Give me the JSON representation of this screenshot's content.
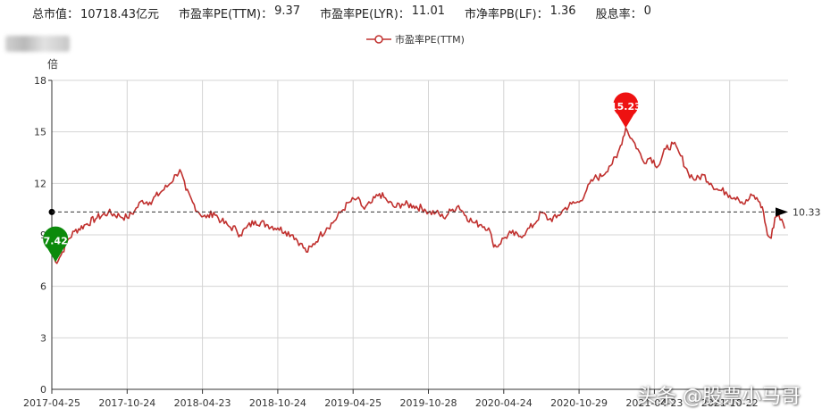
{
  "header": {
    "stats": [
      {
        "label": "总市值：",
        "value": "10718.43亿元"
      },
      {
        "label": "市盈率PE(TTM)：",
        "value": "9.37"
      },
      {
        "label": "市盈率PE(LYR)：",
        "value": "11.01"
      },
      {
        "label": "市净率PB(LF)：",
        "value": "1.36"
      },
      {
        "label": "股息率：",
        "value": "0"
      }
    ]
  },
  "watermark": "头条 @股票小马哥",
  "colors": {
    "line": "#c0302e",
    "max_pin": "#ee1111",
    "min_pin": "#0b8a0b",
    "axis": "#333333",
    "grid": "#d4d4d4"
  },
  "chart_data": {
    "type": "line",
    "title": "",
    "xlabel": "",
    "ylabel": "倍",
    "ylim": [
      0,
      18
    ],
    "yticks": [
      0,
      3,
      6,
      9,
      12,
      15,
      18
    ],
    "grid": true,
    "legend_position": "top-center",
    "categories": [
      "2017-04-25",
      "2017-10-24",
      "2018-04-23",
      "2018-10-24",
      "2019-04-25",
      "2019-10-28",
      "2020-04-24",
      "2020-10-29",
      "2021-04-23",
      "2021-10-22"
    ],
    "series": [
      {
        "name": "市盈率PE(TTM)",
        "points": [
          [
            0,
            8.0
          ],
          [
            0.05,
            7.42
          ],
          [
            0.12,
            7.8
          ],
          [
            0.2,
            8.6
          ],
          [
            0.3,
            9.2
          ],
          [
            0.45,
            9.6
          ],
          [
            0.6,
            10.0
          ],
          [
            0.75,
            10.3
          ],
          [
            0.9,
            10.1
          ],
          [
            1.0,
            10.0
          ],
          [
            1.1,
            10.4
          ],
          [
            1.2,
            11.0
          ],
          [
            1.3,
            10.9
          ],
          [
            1.45,
            11.5
          ],
          [
            1.55,
            11.9
          ],
          [
            1.65,
            12.5
          ],
          [
            1.7,
            12.8
          ],
          [
            1.78,
            11.6
          ],
          [
            1.87,
            10.9
          ],
          [
            1.95,
            10.3
          ],
          [
            2.05,
            10.0
          ],
          [
            2.15,
            10.3
          ],
          [
            2.25,
            9.8
          ],
          [
            2.35,
            9.5
          ],
          [
            2.45,
            9.3
          ],
          [
            2.5,
            9.0
          ],
          [
            2.58,
            9.4
          ],
          [
            2.7,
            9.8
          ],
          [
            2.85,
            9.6
          ],
          [
            3.0,
            9.4
          ],
          [
            3.1,
            9.2
          ],
          [
            3.2,
            9.0
          ],
          [
            3.3,
            8.5
          ],
          [
            3.38,
            8.0
          ],
          [
            3.45,
            8.3
          ],
          [
            3.55,
            8.9
          ],
          [
            3.65,
            9.4
          ],
          [
            3.75,
            9.8
          ],
          [
            3.85,
            10.4
          ],
          [
            3.95,
            10.9
          ],
          [
            4.05,
            11.1
          ],
          [
            4.15,
            10.5
          ],
          [
            4.25,
            10.9
          ],
          [
            4.35,
            11.4
          ],
          [
            4.45,
            11.0
          ],
          [
            4.55,
            10.6
          ],
          [
            4.65,
            10.8
          ],
          [
            4.8,
            10.7
          ],
          [
            4.95,
            10.5
          ],
          [
            5.0,
            10.3
          ],
          [
            5.1,
            10.3
          ],
          [
            5.2,
            10.0
          ],
          [
            5.3,
            10.4
          ],
          [
            5.4,
            10.7
          ],
          [
            5.5,
            10.1
          ],
          [
            5.6,
            9.7
          ],
          [
            5.7,
            9.6
          ],
          [
            5.8,
            9.4
          ],
          [
            5.85,
            8.6
          ],
          [
            5.9,
            8.3
          ],
          [
            6.0,
            8.8
          ],
          [
            6.1,
            9.1
          ],
          [
            6.2,
            8.9
          ],
          [
            6.3,
            9.2
          ],
          [
            6.4,
            9.6
          ],
          [
            6.5,
            10.3
          ],
          [
            6.6,
            9.9
          ],
          [
            6.7,
            10.0
          ],
          [
            6.8,
            10.5
          ],
          [
            6.9,
            10.8
          ],
          [
            7.0,
            10.9
          ],
          [
            7.1,
            11.6
          ],
          [
            7.2,
            12.3
          ],
          [
            7.3,
            12.4
          ],
          [
            7.4,
            13.0
          ],
          [
            7.5,
            13.5
          ],
          [
            7.55,
            14.2
          ],
          [
            7.62,
            15.23
          ],
          [
            7.7,
            14.6
          ],
          [
            7.78,
            14.0
          ],
          [
            7.85,
            13.3
          ],
          [
            7.95,
            13.5
          ],
          [
            8.05,
            13.0
          ],
          [
            8.15,
            14.0
          ],
          [
            8.25,
            14.3
          ],
          [
            8.35,
            13.6
          ],
          [
            8.45,
            12.6
          ],
          [
            8.55,
            12.2
          ],
          [
            8.65,
            12.5
          ],
          [
            8.75,
            12.0
          ],
          [
            8.85,
            11.6
          ],
          [
            8.95,
            11.5
          ],
          [
            9.0,
            11.3
          ],
          [
            9.1,
            11.2
          ],
          [
            9.2,
            10.8
          ],
          [
            9.3,
            11.3
          ],
          [
            9.4,
            10.9
          ],
          [
            9.45,
            10.3
          ],
          [
            9.5,
            9.0
          ],
          [
            9.55,
            8.8
          ],
          [
            9.6,
            10.0
          ],
          [
            9.65,
            10.2
          ],
          [
            9.73,
            9.37
          ]
        ]
      }
    ],
    "max_point": {
      "label": "15.23",
      "value": 15.23
    },
    "min_point": {
      "label": "7.42",
      "value": 7.42
    },
    "average_line": {
      "value": 10.33,
      "label": "10.33"
    }
  }
}
